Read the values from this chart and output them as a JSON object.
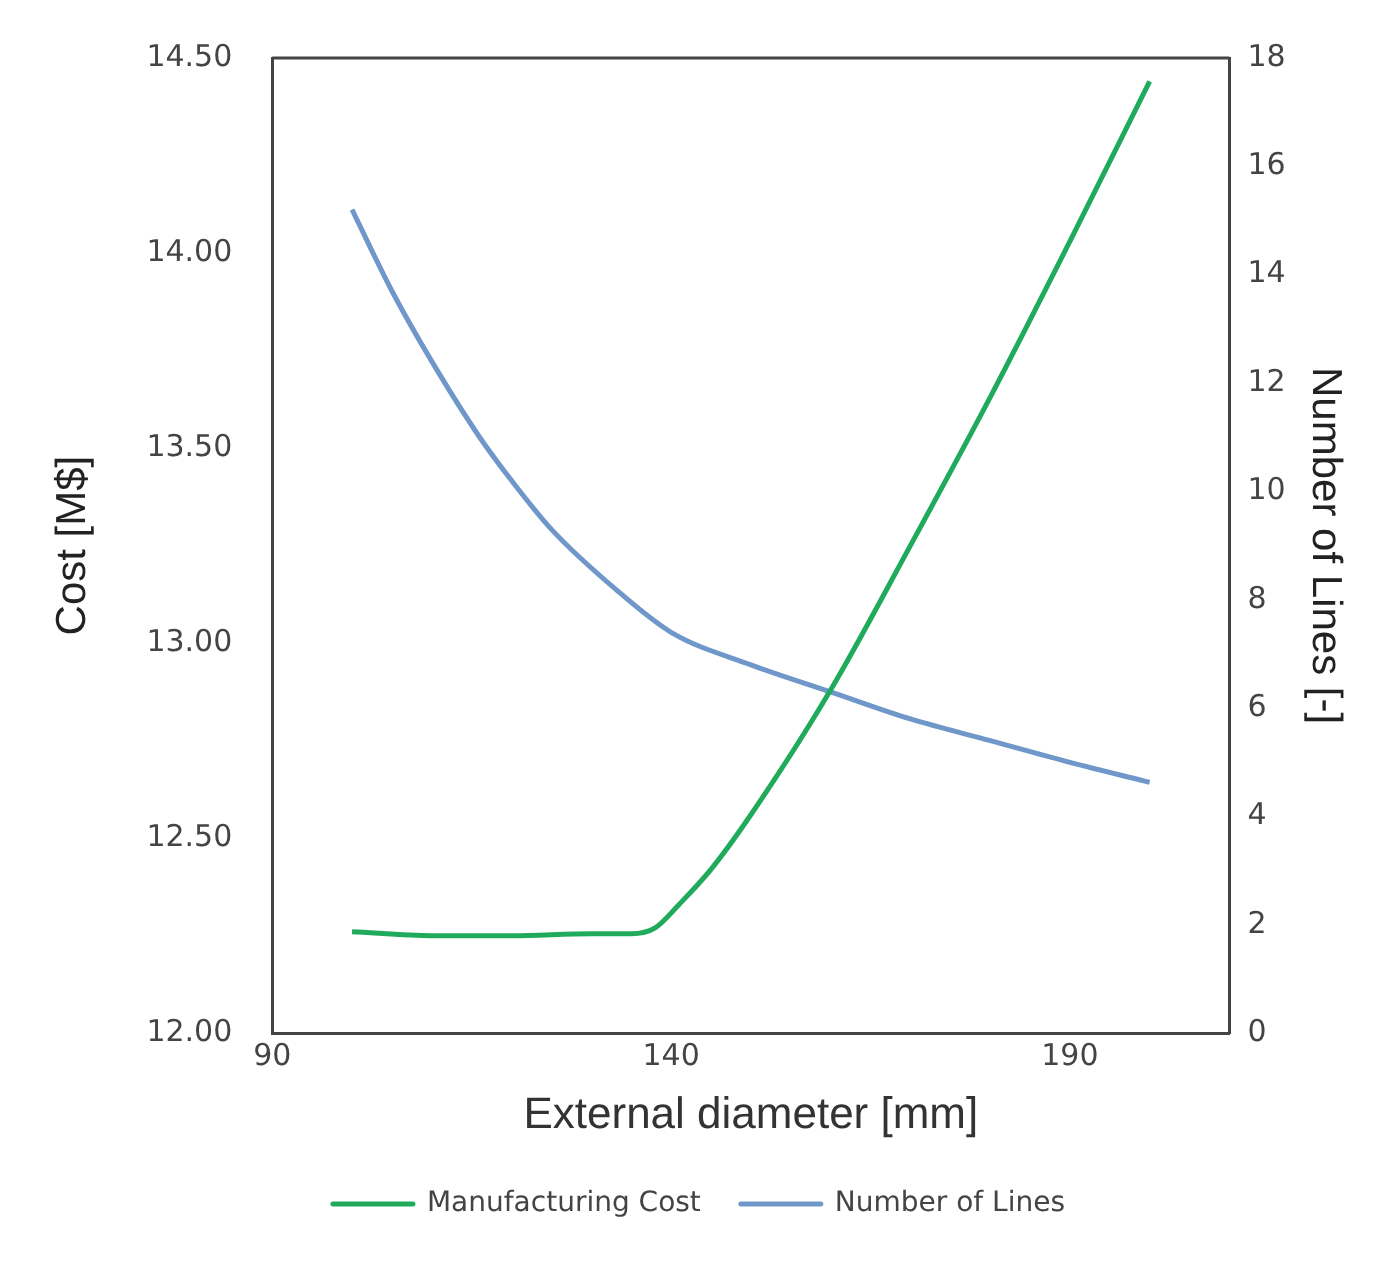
{
  "chart_data": {
    "type": "line",
    "xlabel": "External diameter [mm]",
    "ylabel": "Cost [M$]",
    "y2label": "Number of Lines [-]",
    "xlim": [
      90,
      210
    ],
    "xticks": [
      90,
      140,
      190
    ],
    "ylim": [
      12,
      14.5
    ],
    "yticks": [
      {
        "value": 12,
        "label": "12.00"
      },
      {
        "value": 12.5,
        "label": "12.50"
      },
      {
        "value": 13,
        "label": "13.00"
      },
      {
        "value": 13.5,
        "label": "13.50"
      },
      {
        "value": 14,
        "label": "14.00"
      },
      {
        "value": 14.5,
        "label": "14.50"
      }
    ],
    "y2lim": [
      0,
      18
    ],
    "y2ticks": [
      0,
      2,
      4,
      6,
      8,
      10,
      12,
      14,
      16,
      18
    ],
    "grid": false,
    "legend": "bottom",
    "marker": "none",
    "line_style": "solid",
    "series": [
      {
        "name": "Manufacturing Cost",
        "color": "#1faa5c",
        "x": [
          100,
          110,
          120,
          130,
          135,
          138,
          141,
          145,
          150,
          160,
          170,
          180,
          190,
          200
        ],
        "values": [
          12.26,
          12.25,
          12.25,
          12.255,
          12.255,
          12.27,
          12.33,
          12.42,
          12.56,
          12.88,
          13.25,
          13.63,
          14.03,
          14.44
        ]
      },
      {
        "name": "Number of Lines",
        "color": "#6f97c9",
        "axis": "y2",
        "x": [
          100,
          105,
          110,
          116,
          120,
          125,
          133,
          140,
          150,
          160,
          170,
          180,
          190,
          200
        ],
        "values": [
          15.2,
          13.7,
          12.4,
          11.0,
          10.2,
          9.3,
          8.2,
          7.4,
          6.8,
          6.3,
          5.8,
          5.4,
          5.0,
          4.63
        ]
      }
    ]
  }
}
